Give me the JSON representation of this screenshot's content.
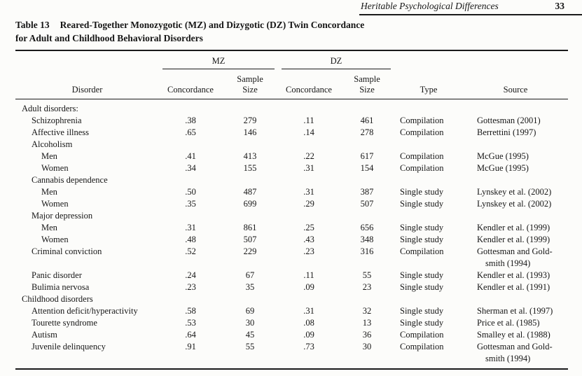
{
  "page": {
    "running_head": "Heritable Psychological Differences",
    "page_number": "33"
  },
  "table": {
    "title_label": "Table 13",
    "title_text": "Reared-Together Monozygotic (MZ) and Dizygotic (DZ) Twin Concordance\nfor Adult and Childhood Behavioral Disorders",
    "spanners": {
      "mz": "MZ",
      "dz": "DZ"
    },
    "headers": {
      "disorder": "Disorder",
      "concordance": "Concordance",
      "sample_size": "Sample\nSize",
      "type": "Type",
      "source": "Source"
    },
    "rows": [
      {
        "label": "Adult disorders:",
        "indent": 0,
        "mz_c": "",
        "mz_n": "",
        "dz_c": "",
        "dz_n": "",
        "type": "",
        "source": ""
      },
      {
        "label": "Schizophrenia",
        "indent": 1,
        "mz_c": ".38",
        "mz_n": "279",
        "dz_c": ".11",
        "dz_n": "461",
        "type": "Compilation",
        "source": "Gottesman (2001)"
      },
      {
        "label": "Affective illness",
        "indent": 1,
        "mz_c": ".65",
        "mz_n": "146",
        "dz_c": ".14",
        "dz_n": "278",
        "type": "Compilation",
        "source": "Berrettini (1997)"
      },
      {
        "label": "Alcoholism",
        "indent": 1,
        "mz_c": "",
        "mz_n": "",
        "dz_c": "",
        "dz_n": "",
        "type": "",
        "source": ""
      },
      {
        "label": "Men",
        "indent": 2,
        "mz_c": ".41",
        "mz_n": "413",
        "dz_c": ".22",
        "dz_n": "617",
        "type": "Compilation",
        "source": "McGue (1995)"
      },
      {
        "label": "Women",
        "indent": 2,
        "mz_c": ".34",
        "mz_n": "155",
        "dz_c": ".31",
        "dz_n": "154",
        "type": "Compilation",
        "source": "McGue (1995)"
      },
      {
        "label": "Cannabis dependence",
        "indent": 1,
        "mz_c": "",
        "mz_n": "",
        "dz_c": "",
        "dz_n": "",
        "type": "",
        "source": ""
      },
      {
        "label": "Men",
        "indent": 2,
        "mz_c": ".50",
        "mz_n": "487",
        "dz_c": ".31",
        "dz_n": "387",
        "type": "Single study",
        "source": "Lynskey et al. (2002)"
      },
      {
        "label": "Women",
        "indent": 2,
        "mz_c": ".35",
        "mz_n": "699",
        "dz_c": ".29",
        "dz_n": "507",
        "type": "Single study",
        "source": "Lynskey et al. (2002)"
      },
      {
        "label": "Major depression",
        "indent": 1,
        "mz_c": "",
        "mz_n": "",
        "dz_c": "",
        "dz_n": "",
        "type": "",
        "source": ""
      },
      {
        "label": "Men",
        "indent": 2,
        "mz_c": ".31",
        "mz_n": "861",
        "dz_c": ".25",
        "dz_n": "656",
        "type": "Single study",
        "source": "Kendler et al. (1999)"
      },
      {
        "label": "Women",
        "indent": 2,
        "mz_c": ".48",
        "mz_n": "507",
        "dz_c": ".43",
        "dz_n": "348",
        "type": "Single study",
        "source": "Kendler et al. (1999)"
      },
      {
        "label": "Criminal conviction",
        "indent": 1,
        "mz_c": ".52",
        "mz_n": "229",
        "dz_c": ".23",
        "dz_n": "316",
        "type": "Compilation",
        "source": "Gottesman and Gold-\nsmith (1994)"
      },
      {
        "label": "Panic disorder",
        "indent": 1,
        "mz_c": ".24",
        "mz_n": "67",
        "dz_c": ".11",
        "dz_n": "55",
        "type": "Single study",
        "source": "Kendler et al. (1993)"
      },
      {
        "label": "Bulimia nervosa",
        "indent": 1,
        "mz_c": ".23",
        "mz_n": "35",
        "dz_c": ".09",
        "dz_n": "23",
        "type": "Single study",
        "source": "Kendler et al. (1991)"
      },
      {
        "label": "Childhood disorders",
        "indent": 0,
        "mz_c": "",
        "mz_n": "",
        "dz_c": "",
        "dz_n": "",
        "type": "",
        "source": ""
      },
      {
        "label": "Attention deficit/hyperactivity",
        "indent": 1,
        "mz_c": ".58",
        "mz_n": "69",
        "dz_c": ".31",
        "dz_n": "32",
        "type": "Single study",
        "source": "Sherman et al. (1997)"
      },
      {
        "label": "Tourette syndrome",
        "indent": 1,
        "mz_c": ".53",
        "mz_n": "30",
        "dz_c": ".08",
        "dz_n": "13",
        "type": "Single study",
        "source": "Price et al. (1985)"
      },
      {
        "label": "Autism",
        "indent": 1,
        "mz_c": ".64",
        "mz_n": "45",
        "dz_c": ".09",
        "dz_n": "36",
        "type": "Compilation",
        "source": "Smalley et al. (1988)"
      },
      {
        "label": "Juvenile delinquency",
        "indent": 1,
        "mz_c": ".91",
        "mz_n": "55",
        "dz_c": ".73",
        "dz_n": "30",
        "type": "Compilation",
        "source": "Gottesman and Gold-\nsmith (1994)"
      }
    ]
  }
}
